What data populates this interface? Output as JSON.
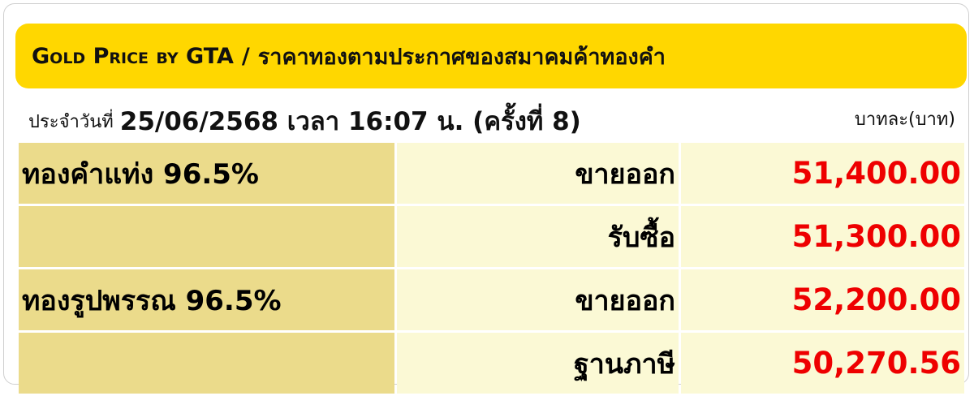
{
  "header": {
    "title_en": "Gold Price by GTA",
    "separator": "/",
    "title_th": "ราคาทองตามประกาศของสมาคมค้าทองคำ"
  },
  "date_row": {
    "label": "ประจำวันที่",
    "value": "25/06/2568 เวลา 16:07 น. (ครั้งที่ 8)",
    "unit": "บาทละ(บาท)"
  },
  "rows": [
    {
      "category": "ทองคำแท่ง 96.5%",
      "type": "ขายออก",
      "price": "51,400.00"
    },
    {
      "category": "",
      "type": "รับซื้อ",
      "price": "51,300.00"
    },
    {
      "category": "ทองรูปพรรณ 96.5%",
      "type": "ขายออก",
      "price": "52,200.00"
    },
    {
      "category": "",
      "type": "ฐานภาษี",
      "price": "50,270.56"
    }
  ],
  "colors": {
    "header_bg": "#FFD700",
    "category_bg": "#EBDB8B",
    "cell_bg": "#FBF9D5",
    "price": "#EE0000"
  }
}
